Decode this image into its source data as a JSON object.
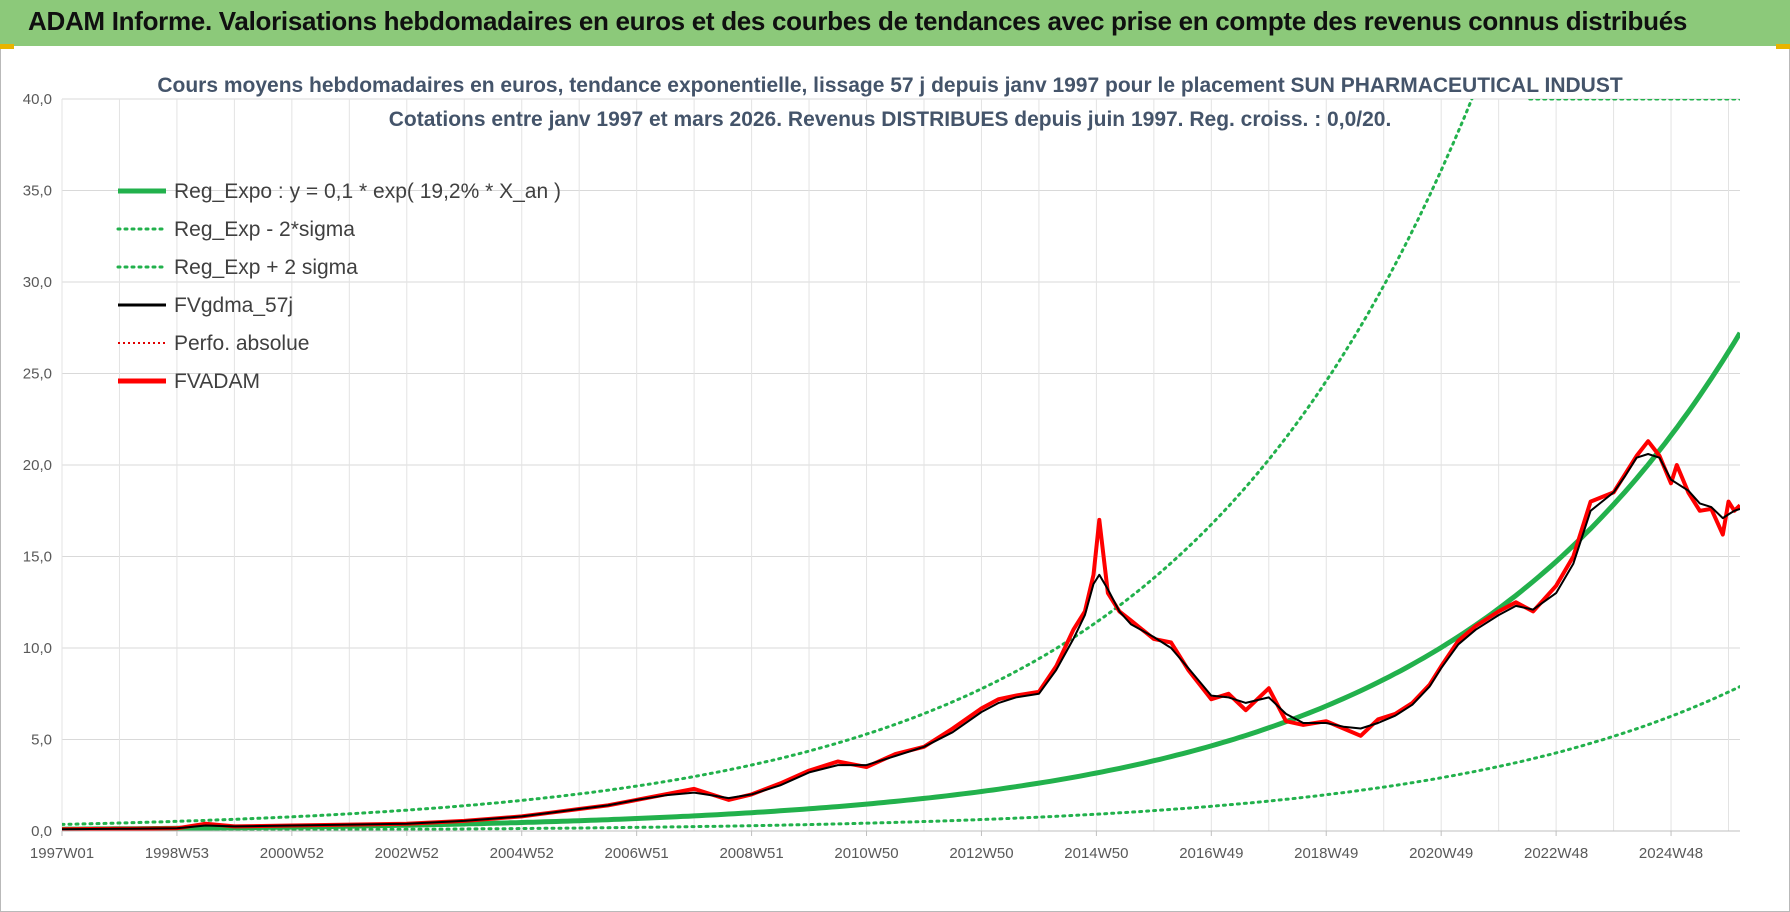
{
  "banner": {
    "title": "ADAM Informe. Valorisations hebdomadaires en euros et des courbes de tendances avec prise en compte des revenus connus distribués"
  },
  "colors": {
    "banner_bg": "#8cc97a",
    "reg_expo": "#22b14c",
    "sigma": "#22b14c",
    "fvgdma": "#000000",
    "perfo": "#e00000",
    "fvadam": "#ff0000",
    "title": "#44546a"
  },
  "chart_data": {
    "type": "line",
    "title": "Cours moyens hebdomadaires en euros, tendance exponentielle, lissage 57 j depuis janv 1997 pour le placement SUN PHARMACEUTICAL INDUST",
    "subtitle": "Cotations entre janv 1997 et mars 2026. Revenus DISTRIBUES depuis juin 1997. Reg. croiss. : 0,0/20.",
    "xlabel": "",
    "ylabel": "",
    "xlim": [
      1997.0,
      2026.2
    ],
    "ylim": [
      0,
      40
    ],
    "yticks": [
      "0,0",
      "5,0",
      "10,0",
      "15,0",
      "20,0",
      "25,0",
      "30,0",
      "35,0",
      "40,0"
    ],
    "ytick_values": [
      0,
      5,
      10,
      15,
      20,
      25,
      30,
      35,
      40
    ],
    "xticks": [
      "1997W01",
      "1998W53",
      "2000W52",
      "2002W52",
      "2004W52",
      "2006W51",
      "2008W51",
      "2010W50",
      "2012W50",
      "2014W50",
      "2016W49",
      "2018W49",
      "2020W49",
      "2022W48",
      "2024W48"
    ],
    "xtick_values": [
      1997.0,
      1999.0,
      2001.0,
      2003.0,
      2005.0,
      2007.0,
      2009.0,
      2011.0,
      2013.0,
      2015.0,
      2017.0,
      2019.0,
      2021.0,
      2023.0,
      2025.0
    ],
    "regression": {
      "a": 0.1,
      "rate": 0.192,
      "start": 1997.0,
      "lower_factor": 0.29,
      "upper_factor": 3.6
    },
    "legend": [
      {
        "name": "Reg_Expo : y = 0,1 * exp( 19,2% *  X_an )",
        "style": "solid-thick",
        "color": "#22b14c"
      },
      {
        "name": "Reg_Exp - 2*sigma",
        "style": "dotted",
        "color": "#22b14c"
      },
      {
        "name": "Reg_Exp + 2 sigma",
        "style": "dotted",
        "color": "#22b14c"
      },
      {
        "name": "FVgdma_57j",
        "style": "solid",
        "color": "#000000"
      },
      {
        "name": "Perfo. absolue",
        "style": "dotted-thin",
        "color": "#e00000"
      },
      {
        "name": "FVADAM",
        "style": "solid-thick",
        "color": "#ff0000"
      }
    ],
    "series": [
      {
        "name": "FVADAM",
        "x": [
          1997.0,
          1998.0,
          1999.0,
          1999.5,
          2000.0,
          2001.0,
          2002.0,
          2003.0,
          2004.0,
          2005.0,
          2005.5,
          2006.0,
          2006.5,
          2007.0,
          2007.5,
          2008.0,
          2008.3,
          2008.6,
          2009.0,
          2009.5,
          2010.0,
          2010.5,
          2011.0,
          2011.5,
          2012.0,
          2012.5,
          2013.0,
          2013.3,
          2013.6,
          2014.0,
          2014.3,
          2014.6,
          2014.8,
          2014.95,
          2015.05,
          2015.2,
          2015.4,
          2015.6,
          2016.0,
          2016.3,
          2016.6,
          2017.0,
          2017.3,
          2017.6,
          2018.0,
          2018.3,
          2018.6,
          2019.0,
          2019.3,
          2019.6,
          2019.9,
          2020.2,
          2020.5,
          2020.8,
          2021.0,
          2021.3,
          2021.6,
          2022.0,
          2022.3,
          2022.6,
          2023.0,
          2023.3,
          2023.6,
          2024.0,
          2024.2,
          2024.4,
          2024.6,
          2024.8,
          2025.0,
          2025.1,
          2025.3,
          2025.5,
          2025.7,
          2025.9,
          2026.0,
          2026.1,
          2026.2
        ],
        "y": [
          0.1,
          0.12,
          0.15,
          0.4,
          0.25,
          0.3,
          0.35,
          0.4,
          0.55,
          0.8,
          1.0,
          1.2,
          1.4,
          1.7,
          2.0,
          2.3,
          2.0,
          1.7,
          2.0,
          2.6,
          3.3,
          3.8,
          3.5,
          4.2,
          4.6,
          5.6,
          6.7,
          7.2,
          7.4,
          7.6,
          9.0,
          11.0,
          12.0,
          14.0,
          17.0,
          13.0,
          12.0,
          11.5,
          10.5,
          10.3,
          8.8,
          7.2,
          7.5,
          6.6,
          7.8,
          6.0,
          5.8,
          6.0,
          5.6,
          5.2,
          6.1,
          6.4,
          7.0,
          8.0,
          9.0,
          10.4,
          11.2,
          12.0,
          12.5,
          12.0,
          13.4,
          15.0,
          18.0,
          18.5,
          19.5,
          20.5,
          21.3,
          20.5,
          19.0,
          20.0,
          18.5,
          17.5,
          17.6,
          16.2,
          18.0,
          17.5,
          17.8
        ]
      },
      {
        "name": "FVgdma_57j",
        "x": [
          1997.0,
          1998.0,
          1999.0,
          1999.5,
          2000.0,
          2001.0,
          2002.0,
          2003.0,
          2004.0,
          2005.0,
          2005.5,
          2006.0,
          2006.5,
          2007.0,
          2007.5,
          2008.0,
          2008.3,
          2008.6,
          2009.0,
          2009.5,
          2010.0,
          2010.5,
          2011.0,
          2011.5,
          2012.0,
          2012.5,
          2013.0,
          2013.3,
          2013.6,
          2014.0,
          2014.3,
          2014.6,
          2014.8,
          2014.95,
          2015.05,
          2015.2,
          2015.4,
          2015.6,
          2016.0,
          2016.3,
          2016.6,
          2017.0,
          2017.3,
          2017.6,
          2018.0,
          2018.3,
          2018.6,
          2019.0,
          2019.3,
          2019.6,
          2019.9,
          2020.2,
          2020.5,
          2020.8,
          2021.0,
          2021.3,
          2021.6,
          2022.0,
          2022.3,
          2022.6,
          2023.0,
          2023.3,
          2023.6,
          2024.0,
          2024.2,
          2024.4,
          2024.6,
          2024.8,
          2025.0,
          2025.1,
          2025.3,
          2025.5,
          2025.7,
          2025.9,
          2026.0,
          2026.1,
          2026.2
        ],
        "y": [
          0.1,
          0.12,
          0.15,
          0.3,
          0.25,
          0.3,
          0.35,
          0.4,
          0.55,
          0.8,
          1.0,
          1.2,
          1.4,
          1.7,
          1.95,
          2.1,
          1.95,
          1.8,
          2.0,
          2.5,
          3.2,
          3.6,
          3.6,
          4.1,
          4.6,
          5.4,
          6.5,
          7.0,
          7.3,
          7.5,
          8.8,
          10.5,
          11.8,
          13.5,
          14.0,
          13.2,
          12.0,
          11.3,
          10.6,
          10.0,
          8.9,
          7.4,
          7.3,
          7.0,
          7.3,
          6.4,
          5.9,
          5.9,
          5.7,
          5.6,
          5.9,
          6.3,
          6.9,
          7.9,
          8.9,
          10.2,
          11.0,
          11.8,
          12.3,
          12.1,
          13.0,
          14.6,
          17.5,
          18.5,
          19.4,
          20.4,
          20.6,
          20.4,
          19.2,
          19.0,
          18.6,
          17.9,
          17.7,
          17.1,
          17.3,
          17.5,
          17.6
        ]
      }
    ],
    "series_names": [
      "Reg_Expo : y = 0,1 * exp( 19,2% *  X_an )",
      "Reg_Exp - 2*sigma",
      "Reg_Exp + 2 sigma",
      "FVgdma_57j",
      "Perfo. absolue",
      "FVADAM"
    ],
    "grid": true,
    "legend_position": "top-left"
  }
}
